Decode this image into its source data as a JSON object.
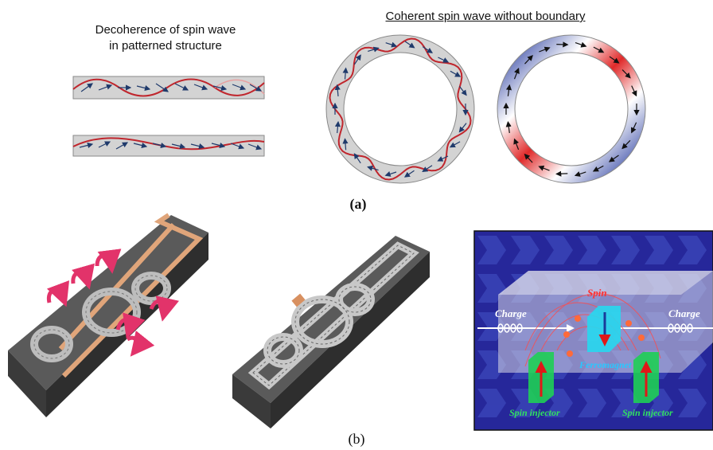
{
  "panel_a": {
    "title_left_line1": "Decoherence of spin wave",
    "title_left_line2": "in patterned structure",
    "title_right": "Coherent spin wave without boundary",
    "label": "(a)"
  },
  "panel_b": {
    "label": "(b)",
    "device": {
      "spin": "Spin",
      "charge_left": "Charge",
      "charge_right": "Charge",
      "ferromagnet": "Ferromagnet",
      "injector_left": "Spin injector",
      "injector_right": "Spin injector"
    }
  },
  "colors": {
    "wave_red": "#c0262d",
    "arrow_navy": "#1f3a6b",
    "strip_gray": "#d3d3d3",
    "field_blue": "#2b3fa0",
    "field_red": "#e02a2a",
    "copper": "#e0a57a",
    "slab_gray": "#5a5a5a",
    "device_bg": "#26279a",
    "injector_green": "#1fcf55",
    "ferromagnet_cyan": "#27d8f0"
  }
}
